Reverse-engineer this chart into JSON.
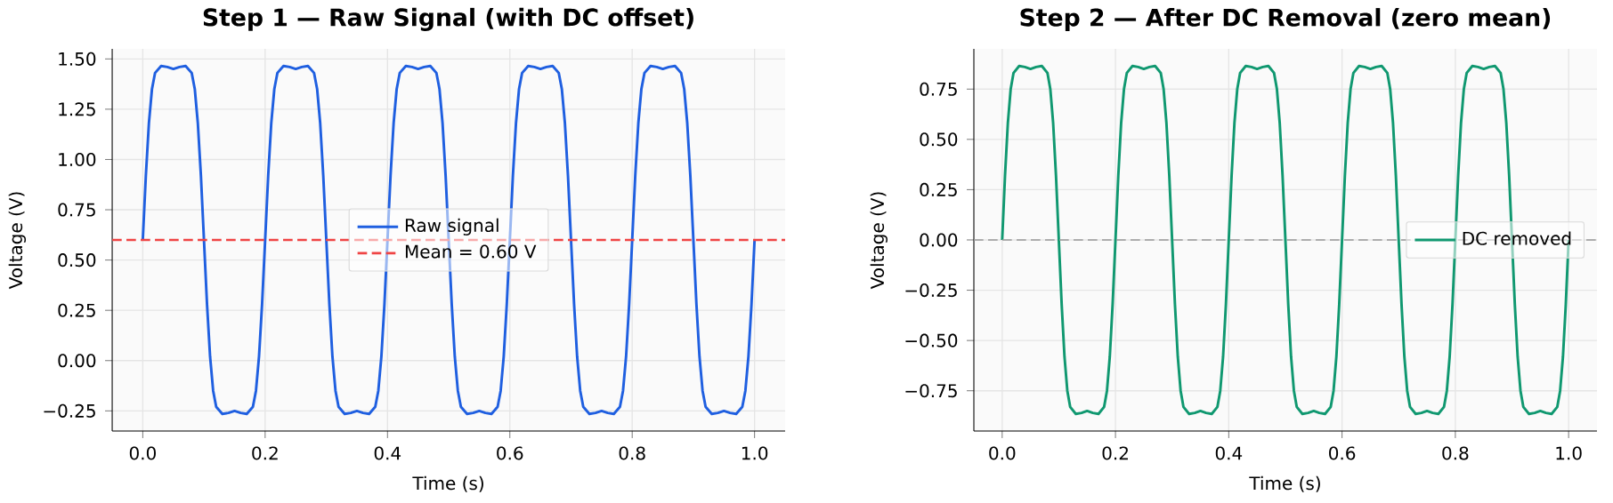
{
  "chart_data": [
    {
      "type": "line",
      "title": "Step 1 — Raw Signal (with DC offset)",
      "xlabel": "Time (s)",
      "ylabel": "Voltage (V)",
      "x": [
        0,
        0.005,
        0.01,
        0.015,
        0.02,
        0.03,
        0.04,
        0.05,
        0.06,
        0.07,
        0.08,
        0.085,
        0.09,
        0.095,
        0.1,
        0.105,
        0.11,
        0.115,
        0.12,
        0.13,
        0.14,
        0.15,
        0.16,
        0.17,
        0.18,
        0.185,
        0.19,
        0.195,
        0.2,
        0.205,
        0.21,
        0.215,
        0.22,
        0.23,
        0.24,
        0.25,
        0.26,
        0.27,
        0.28,
        0.285,
        0.29,
        0.295,
        0.3,
        0.305,
        0.31,
        0.315,
        0.32,
        0.33,
        0.34,
        0.35,
        0.36,
        0.37,
        0.38,
        0.385,
        0.39,
        0.395,
        0.4,
        0.405,
        0.41,
        0.415,
        0.42,
        0.43,
        0.44,
        0.45,
        0.46,
        0.47,
        0.48,
        0.485,
        0.49,
        0.495,
        0.5,
        0.505,
        0.51,
        0.515,
        0.52,
        0.53,
        0.54,
        0.55,
        0.56,
        0.57,
        0.58,
        0.585,
        0.59,
        0.595,
        0.6,
        0.605,
        0.61,
        0.615,
        0.62,
        0.63,
        0.64,
        0.65,
        0.66,
        0.67,
        0.68,
        0.685,
        0.69,
        0.695,
        0.7,
        0.705,
        0.71,
        0.715,
        0.72,
        0.73,
        0.74,
        0.75,
        0.76,
        0.77,
        0.78,
        0.785,
        0.79,
        0.795,
        0.8,
        0.805,
        0.81,
        0.815,
        0.82,
        0.83,
        0.84,
        0.85,
        0.86,
        0.87,
        0.88,
        0.885,
        0.89,
        0.895,
        0.9,
        0.905,
        0.91,
        0.915,
        0.92,
        0.93,
        0.94,
        0.95,
        0.96,
        0.97,
        0.98,
        0.985,
        0.99,
        0.995,
        1.0
      ],
      "series": [
        {
          "name": "Raw signal",
          "color": "#1f5fe0",
          "values": [
            0.6,
            0.92,
            1.18,
            1.35,
            1.43,
            1.465,
            1.46,
            1.45,
            1.46,
            1.465,
            1.43,
            1.35,
            1.18,
            0.92,
            0.6,
            0.28,
            0.02,
            -0.15,
            -0.23,
            -0.265,
            -0.26,
            -0.25,
            -0.26,
            -0.265,
            -0.23,
            -0.15,
            0.02,
            0.28,
            0.6,
            0.92,
            1.18,
            1.35,
            1.43,
            1.465,
            1.46,
            1.45,
            1.46,
            1.465,
            1.43,
            1.35,
            1.18,
            0.92,
            0.6,
            0.28,
            0.02,
            -0.15,
            -0.23,
            -0.265,
            -0.26,
            -0.25,
            -0.26,
            -0.265,
            -0.23,
            -0.15,
            0.02,
            0.28,
            0.6,
            0.92,
            1.18,
            1.35,
            1.43,
            1.465,
            1.46,
            1.45,
            1.46,
            1.465,
            1.43,
            1.35,
            1.18,
            0.92,
            0.6,
            0.28,
            0.02,
            -0.15,
            -0.23,
            -0.265,
            -0.26,
            -0.25,
            -0.26,
            -0.265,
            -0.23,
            -0.15,
            0.02,
            0.28,
            0.6,
            0.92,
            1.18,
            1.35,
            1.43,
            1.465,
            1.46,
            1.45,
            1.46,
            1.465,
            1.43,
            1.35,
            1.18,
            0.92,
            0.6,
            0.28,
            0.02,
            -0.15,
            -0.23,
            -0.265,
            -0.26,
            -0.25,
            -0.26,
            -0.265,
            -0.23,
            -0.15,
            0.02,
            0.28,
            0.6,
            0.92,
            1.18,
            1.35,
            1.43,
            1.465,
            1.46,
            1.45,
            1.46,
            1.465,
            1.43,
            1.35,
            1.18,
            0.92,
            0.6,
            0.28,
            0.02,
            -0.15,
            -0.23,
            -0.265,
            -0.26,
            -0.25,
            -0.26,
            -0.265,
            -0.23,
            -0.15,
            0.02,
            0.28,
            0.6
          ]
        }
      ],
      "ref_lines": [
        {
          "axis": "y",
          "value": 0.6,
          "label": "Mean = 0.60 V",
          "color": "#ef4444",
          "line_style": "dashed"
        }
      ],
      "xlim": [
        -0.05,
        1.05
      ],
      "ylim": [
        -0.35,
        1.55
      ],
      "xticks": [
        {
          "value": 0,
          "label": "0.0"
        },
        {
          "value": 0.2,
          "label": "0.2"
        },
        {
          "value": 0.4,
          "label": "0.4"
        },
        {
          "value": 0.6,
          "label": "0.6"
        },
        {
          "value": 0.8,
          "label": "0.8"
        },
        {
          "value": 1,
          "label": "1.0"
        }
      ],
      "yticks": [
        {
          "value": -0.25,
          "label": "−0.25"
        },
        {
          "value": 0,
          "label": "0.00"
        },
        {
          "value": 0.25,
          "label": "0.25"
        },
        {
          "value": 0.5,
          "label": "0.50"
        },
        {
          "value": 0.75,
          "label": "0.75"
        },
        {
          "value": 1,
          "label": "1.00"
        },
        {
          "value": 1.25,
          "label": "1.25"
        },
        {
          "value": 1.5,
          "label": "1.50"
        }
      ],
      "grid": true,
      "legend": "center",
      "line_style": "solid",
      "marker": "none"
    },
    {
      "type": "line",
      "title": "Step 2 — After DC Removal (zero mean)",
      "xlabel": "Time (s)",
      "ylabel": "Voltage (V)",
      "x": [
        0,
        0.005,
        0.01,
        0.015,
        0.02,
        0.03,
        0.04,
        0.05,
        0.06,
        0.07,
        0.08,
        0.085,
        0.09,
        0.095,
        0.1,
        0.105,
        0.11,
        0.115,
        0.12,
        0.13,
        0.14,
        0.15,
        0.16,
        0.17,
        0.18,
        0.185,
        0.19,
        0.195,
        0.2,
        0.205,
        0.21,
        0.215,
        0.22,
        0.23,
        0.24,
        0.25,
        0.26,
        0.27,
        0.28,
        0.285,
        0.29,
        0.295,
        0.3,
        0.305,
        0.31,
        0.315,
        0.32,
        0.33,
        0.34,
        0.35,
        0.36,
        0.37,
        0.38,
        0.385,
        0.39,
        0.395,
        0.4,
        0.405,
        0.41,
        0.415,
        0.42,
        0.43,
        0.44,
        0.45,
        0.46,
        0.47,
        0.48,
        0.485,
        0.49,
        0.495,
        0.5,
        0.505,
        0.51,
        0.515,
        0.52,
        0.53,
        0.54,
        0.55,
        0.56,
        0.57,
        0.58,
        0.585,
        0.59,
        0.595,
        0.6,
        0.605,
        0.61,
        0.615,
        0.62,
        0.63,
        0.64,
        0.65,
        0.66,
        0.67,
        0.68,
        0.685,
        0.69,
        0.695,
        0.7,
        0.705,
        0.71,
        0.715,
        0.72,
        0.73,
        0.74,
        0.75,
        0.76,
        0.77,
        0.78,
        0.785,
        0.79,
        0.795,
        0.8,
        0.805,
        0.81,
        0.815,
        0.82,
        0.83,
        0.84,
        0.85,
        0.86,
        0.87,
        0.88,
        0.885,
        0.89,
        0.895,
        0.9,
        0.905,
        0.91,
        0.915,
        0.92,
        0.93,
        0.94,
        0.95,
        0.96,
        0.97,
        0.98,
        0.985,
        0.99,
        0.995,
        1.0
      ],
      "series": [
        {
          "name": "DC removed",
          "color": "#109870",
          "values": [
            0,
            0.32,
            0.58,
            0.75,
            0.83,
            0.865,
            0.86,
            0.85,
            0.86,
            0.865,
            0.83,
            0.75,
            0.58,
            0.32,
            0,
            -0.32,
            -0.58,
            -0.75,
            -0.83,
            -0.865,
            -0.86,
            -0.85,
            -0.86,
            -0.865,
            -0.83,
            -0.75,
            -0.58,
            -0.32,
            0,
            0.32,
            0.58,
            0.75,
            0.83,
            0.865,
            0.86,
            0.85,
            0.86,
            0.865,
            0.83,
            0.75,
            0.58,
            0.32,
            0,
            -0.32,
            -0.58,
            -0.75,
            -0.83,
            -0.865,
            -0.86,
            -0.85,
            -0.86,
            -0.865,
            -0.83,
            -0.75,
            -0.58,
            -0.32,
            0,
            0.32,
            0.58,
            0.75,
            0.83,
            0.865,
            0.86,
            0.85,
            0.86,
            0.865,
            0.83,
            0.75,
            0.58,
            0.32,
            0,
            -0.32,
            -0.58,
            -0.75,
            -0.83,
            -0.865,
            -0.86,
            -0.85,
            -0.86,
            -0.865,
            -0.83,
            -0.75,
            -0.58,
            -0.32,
            0,
            0.32,
            0.58,
            0.75,
            0.83,
            0.865,
            0.86,
            0.85,
            0.86,
            0.865,
            0.83,
            0.75,
            0.58,
            0.32,
            0,
            -0.32,
            -0.58,
            -0.75,
            -0.83,
            -0.865,
            -0.86,
            -0.85,
            -0.86,
            -0.865,
            -0.83,
            -0.75,
            -0.58,
            -0.32,
            0,
            0.32,
            0.58,
            0.75,
            0.83,
            0.865,
            0.86,
            0.85,
            0.86,
            0.865,
            0.83,
            0.75,
            0.58,
            0.32,
            0,
            -0.32,
            -0.58,
            -0.75,
            -0.83,
            -0.865,
            -0.86,
            -0.85,
            -0.86,
            -0.865,
            -0.83,
            -0.75,
            -0.58,
            -0.32,
            0
          ]
        }
      ],
      "ref_lines": [
        {
          "axis": "y",
          "value": 0,
          "color": "#999999",
          "line_style": "dashed"
        }
      ],
      "xlim": [
        -0.05,
        1.05
      ],
      "ylim": [
        -0.95,
        0.95
      ],
      "xticks": [
        {
          "value": 0,
          "label": "0.0"
        },
        {
          "value": 0.2,
          "label": "0.2"
        },
        {
          "value": 0.4,
          "label": "0.4"
        },
        {
          "value": 0.6,
          "label": "0.6"
        },
        {
          "value": 0.8,
          "label": "0.8"
        },
        {
          "value": 1,
          "label": "1.0"
        }
      ],
      "yticks": [
        {
          "value": -0.75,
          "label": "−0.75"
        },
        {
          "value": -0.5,
          "label": "−0.50"
        },
        {
          "value": -0.25,
          "label": "−0.25"
        },
        {
          "value": 0,
          "label": "0.00"
        },
        {
          "value": 0.25,
          "label": "0.25"
        },
        {
          "value": 0.5,
          "label": "0.50"
        },
        {
          "value": 0.75,
          "label": "0.75"
        }
      ],
      "grid": true,
      "legend": "center right",
      "line_style": "solid",
      "marker": "none"
    }
  ]
}
